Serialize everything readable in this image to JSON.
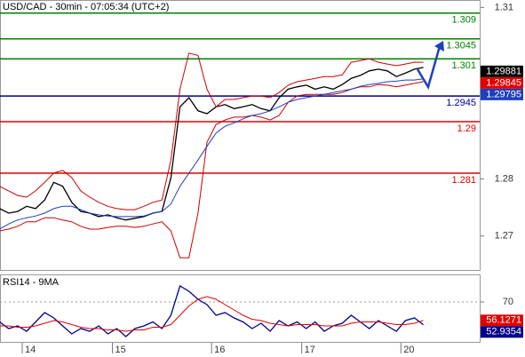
{
  "chart_data": [
    {
      "type": "line",
      "title": "USD/CAD - 30min - 07:05:34 (UTC+2)",
      "categories": [
        null,
        null,
        null,
        "14",
        null,
        null,
        null,
        null,
        null,
        null,
        null,
        null,
        null,
        "15",
        null,
        null,
        null,
        null,
        null,
        null,
        null,
        null,
        null,
        null,
        "16",
        null,
        null,
        null,
        null,
        null,
        null,
        null,
        null,
        null,
        "17",
        null,
        null,
        null,
        null,
        null,
        null,
        null,
        null,
        null,
        null,
        "20",
        null,
        null
      ],
      "series": [
        {
          "color": "#000000",
          "values": [
            1.2748,
            1.274,
            1.2743,
            1.2752,
            1.2748,
            1.2763,
            1.2794,
            1.2787,
            1.2759,
            1.2743,
            1.274,
            1.2734,
            1.2737,
            1.2732,
            1.2728,
            1.2731,
            1.2734,
            1.274,
            1.2743,
            1.2802,
            1.2926,
            1.2942,
            1.2919,
            1.2914,
            1.2926,
            1.293,
            1.2923,
            1.2926,
            1.293,
            1.2923,
            1.2919,
            1.2942,
            1.2957,
            1.2961,
            1.2964,
            1.2957,
            1.2961,
            1.2957,
            1.2965,
            1.2976,
            1.2981,
            1.2989,
            1.2992,
            1.2989,
            1.2979,
            1.2985,
            1.2992,
            1.2995
          ]
        },
        {
          "color": "#cc0000",
          "values": [
            1.2787,
            1.2779,
            1.2771,
            1.2768,
            1.2779,
            1.2794,
            1.281,
            1.2815,
            1.2802,
            1.2779,
            1.2768,
            1.2759,
            1.2752,
            1.2748,
            1.2746,
            1.2746,
            1.2752,
            1.2759,
            1.2763,
            1.2833,
            1.2957,
            1.302,
            1.3016,
            1.2957,
            1.2926,
            1.2939,
            1.2939,
            1.2942,
            1.2945,
            1.2945,
            1.2942,
            1.2951,
            1.2964,
            1.297,
            1.2973,
            1.2976,
            1.2979,
            1.2979,
            1.2982,
            1.3004,
            1.3007,
            1.301,
            1.3004,
            1.3001,
            1.2998,
            1.3001,
            1.3004,
            1.3004
          ]
        },
        {
          "color": "#cc0000",
          "values": [
            1.2709,
            1.2712,
            1.2717,
            1.2725,
            1.2725,
            1.2732,
            1.2732,
            1.2728,
            1.2725,
            1.2717,
            1.2712,
            1.2712,
            1.2715,
            1.2717,
            1.2717,
            1.2715,
            1.2717,
            1.2721,
            1.2725,
            1.2709,
            1.2662,
            1.2662,
            1.274,
            1.2864,
            1.2895,
            1.2903,
            1.2908,
            1.2908,
            1.2911,
            1.2908,
            1.2903,
            1.2911,
            1.2934,
            1.2945,
            1.2948,
            1.2948,
            1.2948,
            1.2948,
            1.2951,
            1.2957,
            1.2961,
            1.2961,
            1.2965,
            1.2964,
            1.2961,
            1.2964,
            1.2967,
            1.297
          ]
        },
        {
          "color": "#1f3fbf",
          "values": [
            1.2712,
            1.2721,
            1.2728,
            1.2732,
            1.2735,
            1.274,
            1.2748,
            1.2752,
            1.2752,
            1.2746,
            1.274,
            1.2737,
            1.2735,
            1.2734,
            1.2734,
            1.2734,
            1.2735,
            1.274,
            1.2743,
            1.2756,
            1.2787,
            1.281,
            1.2833,
            1.2857,
            1.288,
            1.2892,
            1.2898,
            1.2905,
            1.2911,
            1.2914,
            1.2919,
            1.2926,
            1.2934,
            1.2939,
            1.2942,
            1.2945,
            1.2948,
            1.2951,
            1.2954,
            1.2957,
            1.2962,
            1.2965,
            1.2967,
            1.297,
            1.2971,
            1.2973,
            1.2973,
            1.2975
          ]
        }
      ],
      "ylim": [
        1.2639,
        1.3113
      ],
      "yticks": [
        1.27,
        1.28,
        1.31
      ],
      "levels": [
        {
          "value": 1.309,
          "color": "#008000"
        },
        {
          "value": 1.3045,
          "color": "#008000"
        },
        {
          "value": 1.301,
          "color": "#008000"
        },
        {
          "value": 1.2945,
          "color": "#00008b"
        },
        {
          "value": 1.29,
          "color": "#e00000"
        },
        {
          "value": 1.281,
          "color": "#e00000"
        }
      ],
      "price_tags": [
        {
          "value": 1.29881,
          "color": "#000000"
        },
        {
          "value": 1.29845,
          "color": "#e00000"
        },
        {
          "value": 1.29795,
          "color": "#1f3fbf"
        }
      ]
    },
    {
      "type": "line",
      "title": "RSI14 - 9MA",
      "series": [
        {
          "color": "#00008b",
          "values": [
            55,
            50,
            52,
            48,
            55,
            62,
            58,
            52,
            46,
            50,
            48,
            52,
            46,
            50,
            44,
            50,
            52,
            55,
            50,
            60,
            82,
            78,
            72,
            68,
            60,
            62,
            58,
            55,
            50,
            54,
            48,
            56,
            52,
            55,
            50,
            55,
            48,
            52,
            54,
            60,
            55,
            50,
            56,
            52,
            48,
            56,
            58,
            52.9354
          ]
        },
        {
          "color": "#e00000",
          "values": [
            52,
            52,
            51,
            51,
            52,
            54,
            56,
            55,
            53,
            51,
            50,
            50,
            49,
            49,
            48,
            49,
            49,
            51,
            51,
            53,
            60,
            67,
            72,
            74,
            72,
            68,
            64,
            60,
            57,
            56,
            54,
            53,
            52,
            53,
            53,
            53,
            52,
            52,
            52,
            54,
            55,
            55,
            55,
            54,
            53,
            53,
            54,
            56.1271
          ]
        }
      ],
      "ylim": [
        40,
        90
      ],
      "yticks": [
        70
      ]
    }
  ]
}
